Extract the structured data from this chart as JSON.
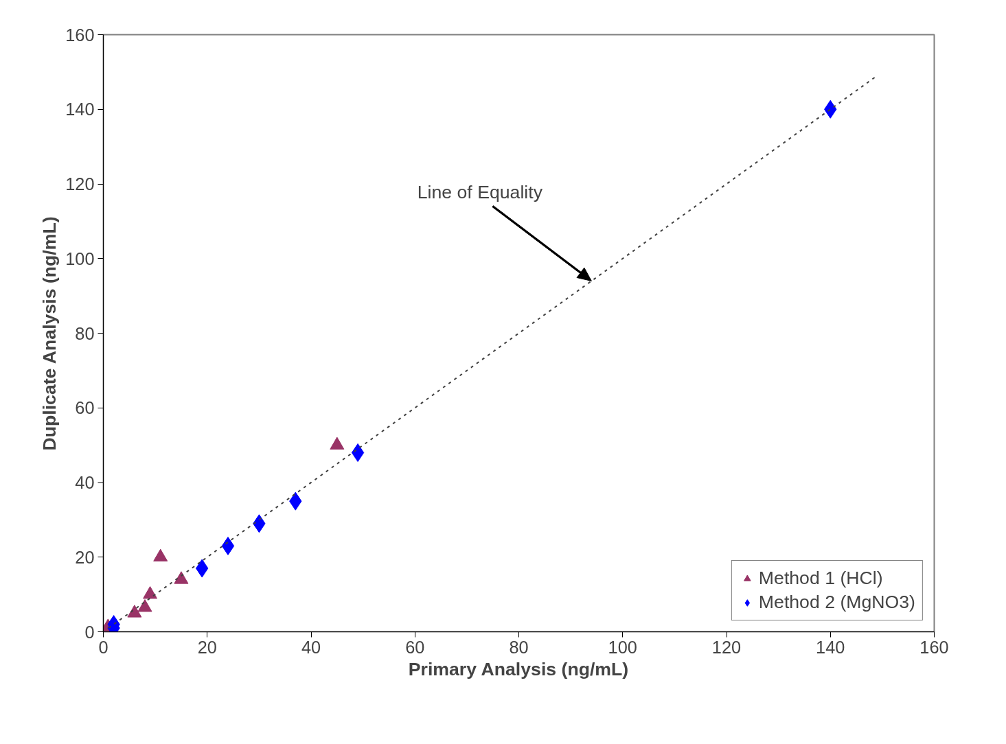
{
  "chart_data": {
    "type": "scatter",
    "xlabel": "Primary Analysis (ng/mL)",
    "ylabel": "Duplicate Analysis (ng/mL)",
    "xlim": [
      0,
      160
    ],
    "ylim": [
      0,
      160
    ],
    "xticks": [
      0,
      20,
      40,
      60,
      80,
      100,
      120,
      140,
      160
    ],
    "yticks": [
      0,
      20,
      40,
      60,
      80,
      100,
      120,
      140,
      160
    ],
    "grid": false,
    "legend": "bottom right",
    "annotations": [
      "Line of Equality"
    ],
    "series": [
      {
        "name": "Method 1 (HCl)",
        "color": "#993366",
        "marker": "triangle",
        "x": [
          0.9,
          6,
          8,
          9,
          11,
          15,
          45
        ],
        "values": [
          1.3,
          5,
          6.5,
          10,
          20,
          14,
          50
        ]
      },
      {
        "name": "Method 2 (MgNO3)",
        "color": "#0000ff",
        "marker": "diamond",
        "x": [
          2,
          2,
          19,
          24,
          30,
          37,
          49,
          140
        ],
        "values": [
          2,
          1,
          17,
          23,
          29,
          35,
          48,
          140
        ]
      },
      {
        "type": "line",
        "color": "#404040",
        "line_style": "dotted",
        "marker": "none",
        "x": [
          1,
          149
        ],
        "values": [
          1,
          149
        ]
      }
    ]
  }
}
